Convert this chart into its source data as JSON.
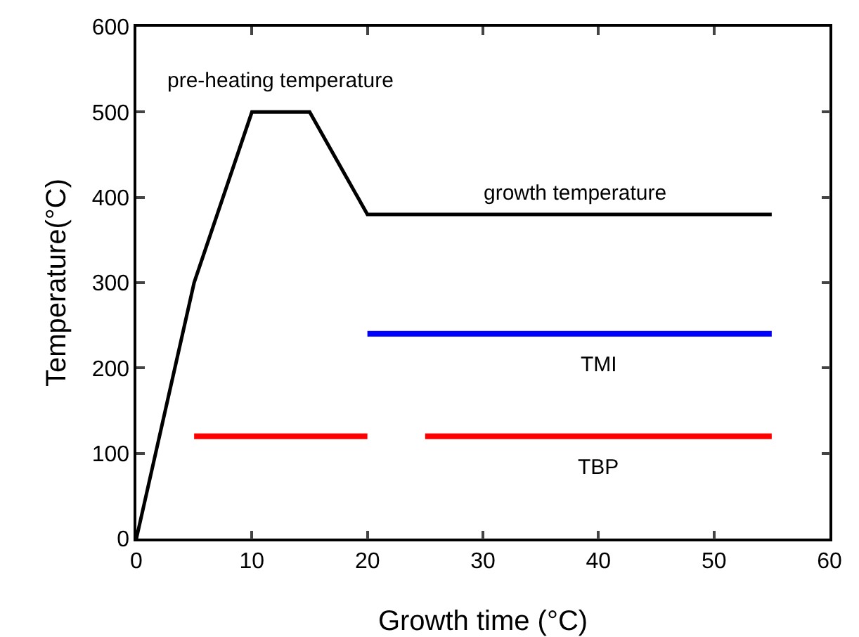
{
  "chart_data": {
    "type": "line",
    "xlabel": "Growth time (°C)",
    "ylabel": "Temperature(°C)",
    "xlim": [
      0,
      60
    ],
    "xticks": [
      0,
      10,
      20,
      30,
      40,
      50,
      60
    ],
    "ylim": [
      0,
      600
    ],
    "yticks": [
      0,
      100,
      200,
      300,
      400,
      500,
      600
    ],
    "grid": false,
    "marker": "none",
    "line_style": "solid",
    "series": [
      {
        "color": "#000000",
        "x": [
          0,
          5,
          10,
          15,
          20,
          55
        ],
        "values": [
          0,
          300,
          500,
          500,
          380,
          380
        ]
      },
      {
        "color": "#0000ff",
        "x": [
          20,
          55
        ],
        "values": [
          240,
          240
        ]
      },
      {
        "color": "#ff0000",
        "x": [
          5,
          20,
          22.5,
          25,
          55
        ],
        "values": [
          120,
          120,
          null,
          120,
          120
        ]
      }
    ],
    "annotations": [
      {
        "text": "pre-heating temperature",
        "x": 12.5,
        "y": 500
      },
      {
        "text": "growth temperature",
        "x": 38,
        "y": 380
      },
      {
        "text": "TMI",
        "x": 40,
        "y": 240
      },
      {
        "text": "TBP",
        "x": 40,
        "y": 120
      }
    ]
  }
}
